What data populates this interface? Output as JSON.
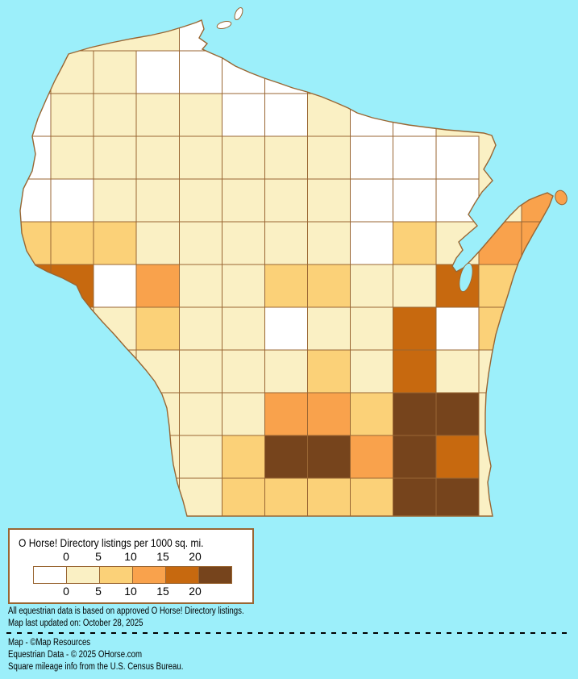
{
  "page": {
    "background_color": "#9CEFFA"
  },
  "map": {
    "type": "choropleth",
    "region_depicted": "Wisconsin counties",
    "water_color": "#9CEFFA",
    "county_border_color": "#996633",
    "palette": {
      "W": "#FFFFFF",
      "C": "#FAF0C4",
      "Y": "#FBD178",
      "O": "#F9A24C",
      "D": "#C7690F",
      "B": "#76441C"
    },
    "bucket_values": {
      "W": "0",
      "C": "0-5",
      "Y": "5-10",
      "O": "10-15",
      "D": "15-20",
      "B": "20+"
    },
    "grid_rows": [
      "....WW.......",
      ".CCWWWWW.....",
      "WCCCCWWCWW...",
      "WCCCCCCCWWW..",
      "WWCCCCCCWWW.O",
      "YYYCCCCCWYCOO",
      "DDWOCCYYCCDY.",
      "..CYCCWCCDWY.",
      "...CCCCYCDCC.",
      "...CCCOOYBB..",
      "...CCYBBOBD..",
      "....CYYYYBB.."
    ]
  },
  "legend": {
    "title": "O Horse! Directory listings per 1000 sq. mi.",
    "tick_labels": [
      "0",
      "5",
      "10",
      "15",
      "20"
    ],
    "swatch_colors": [
      "#FFFFFF",
      "#FAF0C4",
      "#FBD178",
      "#F9A24C",
      "#C7690F",
      "#76441C"
    ],
    "border_color": "#996633",
    "background": "#FFFFFF"
  },
  "footer": {
    "note_line1": "All equestrian data is based on approved O Horse! Directory listings.",
    "note_line2": "Map last updated on: October 28, 2025",
    "credit_line1": "Map - ©Map Resources",
    "credit_line2": "Equestrian Data - © 2025 OHorse.com",
    "credit_line3": "Square mileage info from the U.S. Census Bureau."
  }
}
